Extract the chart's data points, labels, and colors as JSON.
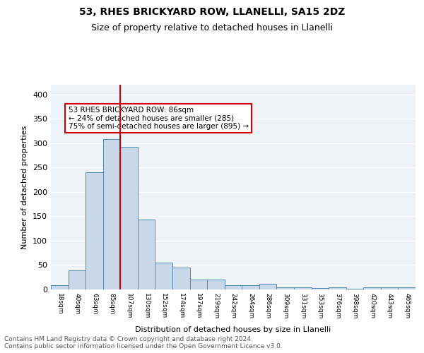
{
  "title1": "53, RHES BRICKYARD ROW, LLANELLI, SA15 2DZ",
  "title2": "Size of property relative to detached houses in Llanelli",
  "xlabel": "Distribution of detached houses by size in Llanelli",
  "ylabel": "Number of detached properties",
  "bar_labels": [
    "18sqm",
    "40sqm",
    "63sqm",
    "85sqm",
    "107sqm",
    "130sqm",
    "152sqm",
    "174sqm",
    "197sqm",
    "219sqm",
    "242sqm",
    "264sqm",
    "286sqm",
    "309sqm",
    "331sqm",
    "353sqm",
    "376sqm",
    "398sqm",
    "420sqm",
    "443sqm",
    "465sqm"
  ],
  "bar_values": [
    8,
    39,
    240,
    308,
    293,
    144,
    55,
    45,
    20,
    20,
    8,
    8,
    11,
    5,
    4,
    3,
    4,
    1,
    4,
    4,
    4
  ],
  "bar_color": "#c9d9ea",
  "bar_edge_color": "#4d8ab5",
  "background_color": "#eef3f8",
  "grid_color": "#ffffff",
  "red_line_x": 3,
  "annotation_text": "53 RHES BRICKYARD ROW: 86sqm\n← 24% of detached houses are smaller (285)\n75% of semi-detached houses are larger (895) →",
  "annotation_box_color": "#ffffff",
  "annotation_box_edge": "#cc0000",
  "red_line_color": "#cc0000",
  "footer_text": "Contains HM Land Registry data © Crown copyright and database right 2024.\nContains public sector information licensed under the Open Government Licence v3.0.",
  "ylim": [
    0,
    420
  ],
  "yticks": [
    0,
    50,
    100,
    150,
    200,
    250,
    300,
    350,
    400
  ]
}
